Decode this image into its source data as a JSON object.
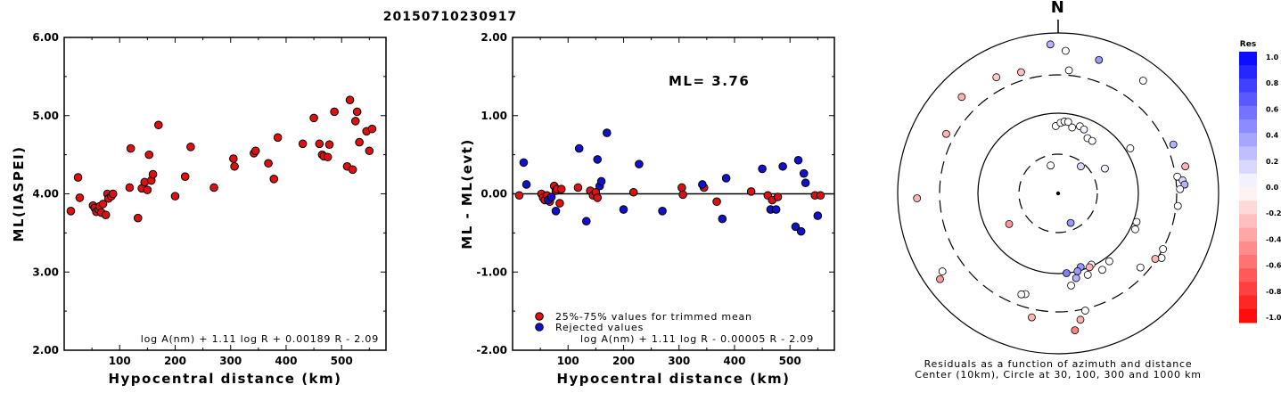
{
  "title": "20150710230917",
  "colors": {
    "used": "#dd1111",
    "rejected": "#1111cc"
  },
  "chart_data": [
    {
      "type": "scatter",
      "xlabel": "Hypocentral distance (km)",
      "ylabel": "ML(IASPEI)",
      "xlim": [
        0,
        580
      ],
      "ylim": [
        2.0,
        6.0
      ],
      "xticks": [
        "100",
        "200",
        "300",
        "400",
        "500"
      ],
      "yticks": [
        "2.00",
        "3.00",
        "4.00",
        "5.00",
        "6.00"
      ],
      "annotation": "log A(nm) + 1.11 log R + 0.00189 R - 2.09",
      "series": [
        {
          "x": [
            12,
            25,
            28,
            52,
            55,
            58,
            62,
            64,
            67,
            70,
            75,
            78,
            80,
            85,
            88,
            118,
            120,
            133,
            140,
            145,
            150,
            153,
            157,
            160,
            170,
            200,
            218,
            228,
            270,
            305,
            307,
            342,
            345,
            368,
            378,
            385,
            430,
            450,
            460,
            465,
            468,
            475,
            478,
            487,
            510,
            515,
            520,
            525,
            528,
            532,
            545,
            550,
            555
          ],
          "y": [
            3.78,
            4.21,
            3.95,
            3.85,
            3.82,
            3.77,
            3.8,
            3.84,
            3.76,
            3.87,
            3.73,
            4.0,
            3.94,
            3.97,
            4.0,
            4.08,
            4.58,
            3.69,
            4.07,
            4.15,
            4.05,
            4.5,
            4.17,
            4.25,
            4.88,
            3.97,
            4.22,
            4.6,
            4.08,
            4.45,
            4.35,
            4.52,
            4.55,
            4.39,
            4.19,
            4.72,
            4.64,
            4.97,
            4.64,
            4.5,
            4.48,
            4.47,
            4.63,
            5.05,
            4.35,
            5.2,
            4.31,
            4.93,
            5.05,
            4.66,
            4.8,
            4.55,
            4.83
          ]
        }
      ]
    },
    {
      "type": "scatter",
      "xlabel": "Hypocentral distance (km)",
      "ylabel": "ML - ML(evt)",
      "xlim": [
        0,
        580
      ],
      "ylim": [
        -2.0,
        2.0
      ],
      "xticks": [
        "100",
        "200",
        "300",
        "400",
        "500"
      ],
      "yticks": [
        "-2.00",
        "-1.00",
        "0.00",
        "1.00",
        "2.00"
      ],
      "annotation": "ML= 3.76",
      "formula": "log A(nm) + 1.11 log R - 0.00005 R - 2.09",
      "legend": [
        "25%-75% values for trimmed mean",
        "Rejected values"
      ],
      "series": [
        {
          "name": "25%-75% values for trimmed mean",
          "x": [
            12,
            52,
            55,
            58,
            62,
            67,
            75,
            78,
            80,
            85,
            88,
            118,
            140,
            145,
            150,
            153,
            218,
            305,
            307,
            345,
            368,
            430,
            460,
            468,
            478,
            545,
            555
          ],
          "y": [
            -0.02,
            0.0,
            -0.05,
            -0.08,
            -0.02,
            -0.1,
            0.1,
            0.04,
            0.06,
            -0.12,
            0.06,
            0.08,
            0.04,
            -0.02,
            0.02,
            -0.05,
            0.02,
            0.08,
            -0.01,
            0.08,
            -0.1,
            0.03,
            -0.02,
            -0.08,
            -0.04,
            -0.02,
            -0.02
          ]
        },
        {
          "name": "Rejected values",
          "x": [
            20,
            25,
            64,
            70,
            78,
            120,
            133,
            153,
            157,
            160,
            170,
            200,
            228,
            270,
            342,
            378,
            385,
            450,
            465,
            475,
            487,
            510,
            515,
            520,
            525,
            528,
            550
          ],
          "y": [
            0.4,
            0.12,
            -0.08,
            -0.04,
            -0.22,
            0.58,
            -0.35,
            0.44,
            0.1,
            0.16,
            0.78,
            -0.2,
            0.38,
            -0.22,
            0.12,
            -0.32,
            0.2,
            0.32,
            -0.2,
            -0.2,
            0.35,
            -0.42,
            0.43,
            -0.48,
            0.26,
            0.14,
            -0.28
          ]
        }
      ]
    },
    {
      "type": "scatter",
      "title": "N",
      "caption": [
        "Residuals as a function of azimuth and distance",
        "Center (10km), Circle at 30, 100, 300 and 1000 km"
      ],
      "colorbar_title": "Res",
      "colorbar_ticks": [
        "1.0",
        "0.8",
        "0.6",
        "0.4",
        "0.2",
        "0.0",
        "-0.2",
        "-0.4",
        "-0.6",
        "-0.8",
        "-1.0"
      ],
      "points_az_res": [
        {
          "az": 357,
          "r": 0.93,
          "res": 0.3
        },
        {
          "az": 3,
          "r": 0.89,
          "res": 0.0
        },
        {
          "az": 17,
          "r": 0.87,
          "res": 0.4
        },
        {
          "az": 37,
          "r": 0.88,
          "res": 0.0
        },
        {
          "az": 5,
          "r": 0.77,
          "res": 0.0
        },
        {
          "az": 332,
          "r": 0.82,
          "res": -0.2
        },
        {
          "az": 343,
          "r": 0.79,
          "res": -0.25
        },
        {
          "az": 315,
          "r": 0.85,
          "res": -0.3
        },
        {
          "az": 358,
          "r": 0.42,
          "res": 0.0
        },
        {
          "az": 2,
          "r": 0.44,
          "res": 0.0
        },
        {
          "az": 5,
          "r": 0.45,
          "res": 0.05
        },
        {
          "az": 8,
          "r": 0.45,
          "res": 0.0
        },
        {
          "az": 12,
          "r": 0.42,
          "res": 0.0
        },
        {
          "az": 18,
          "r": 0.44,
          "res": 0.0
        },
        {
          "az": 22,
          "r": 0.43,
          "res": 0.05
        },
        {
          "az": 28,
          "r": 0.39,
          "res": 0.0
        },
        {
          "az": 33,
          "r": 0.39,
          "res": 0.0
        },
        {
          "az": 345,
          "r": 0.18,
          "res": 0.0
        },
        {
          "az": 40,
          "r": 0.22,
          "res": 0.15
        },
        {
          "az": 62,
          "r": 0.33,
          "res": 0.05
        },
        {
          "az": 58,
          "r": 0.53,
          "res": 0.0
        },
        {
          "az": 67,
          "r": 0.78,
          "res": 0.3
        },
        {
          "az": 78,
          "r": 0.81,
          "res": -0.3
        },
        {
          "az": 82,
          "r": 0.75,
          "res": 0.0
        },
        {
          "az": 84,
          "r": 0.78,
          "res": 0.15
        },
        {
          "az": 86,
          "r": 0.79,
          "res": 0.3
        },
        {
          "az": 88,
          "r": 0.76,
          "res": 0.0
        },
        {
          "az": 96,
          "r": 0.75,
          "res": 0.0
        },
        {
          "az": 110,
          "r": 0.52,
          "res": 0.0
        },
        {
          "az": 115,
          "r": 0.53,
          "res": 0.0
        },
        {
          "az": 118,
          "r": 0.74,
          "res": 0.0
        },
        {
          "az": 122,
          "r": 0.76,
          "res": 0.0
        },
        {
          "az": 124,
          "r": 0.73,
          "res": -0.3
        },
        {
          "az": 132,
          "r": 0.69,
          "res": 0.0
        },
        {
          "az": 143,
          "r": 0.53,
          "res": 0.0
        },
        {
          "az": 150,
          "r": 0.55,
          "res": 0.0
        },
        {
          "az": 155,
          "r": 0.49,
          "res": 0.0
        },
        {
          "az": 157,
          "r": 0.5,
          "res": -0.3
        },
        {
          "az": 160,
          "r": 0.54,
          "res": 0.0
        },
        {
          "az": 163,
          "r": 0.48,
          "res": 0.4
        },
        {
          "az": 166,
          "r": 0.5,
          "res": 0.4
        },
        {
          "az": 168,
          "r": 0.54,
          "res": 0.3
        },
        {
          "az": 172,
          "r": 0.58,
          "res": 0.0
        },
        {
          "az": 174,
          "r": 0.5,
          "res": 0.5
        },
        {
          "az": 157,
          "r": 0.2,
          "res": 0.4
        },
        {
          "az": 167,
          "r": 0.75,
          "res": 0.0
        },
        {
          "az": 170,
          "r": 0.8,
          "res": -0.3
        },
        {
          "az": 173,
          "r": 0.86,
          "res": -0.5
        },
        {
          "az": 192,
          "r": 0.79,
          "res": -0.3
        },
        {
          "az": 198,
          "r": 0.66,
          "res": 0.0
        },
        {
          "az": 200,
          "r": 0.67,
          "res": 0.0
        },
        {
          "az": 238,
          "r": 0.36,
          "res": -0.4
        },
        {
          "az": 236,
          "r": 0.87,
          "res": 0.0
        },
        {
          "az": 234,
          "r": 0.91,
          "res": -0.4
        },
        {
          "az": 268,
          "r": 0.88,
          "res": -0.3
        },
        {
          "az": 298,
          "r": 0.79,
          "res": -0.3
        }
      ]
    }
  ]
}
